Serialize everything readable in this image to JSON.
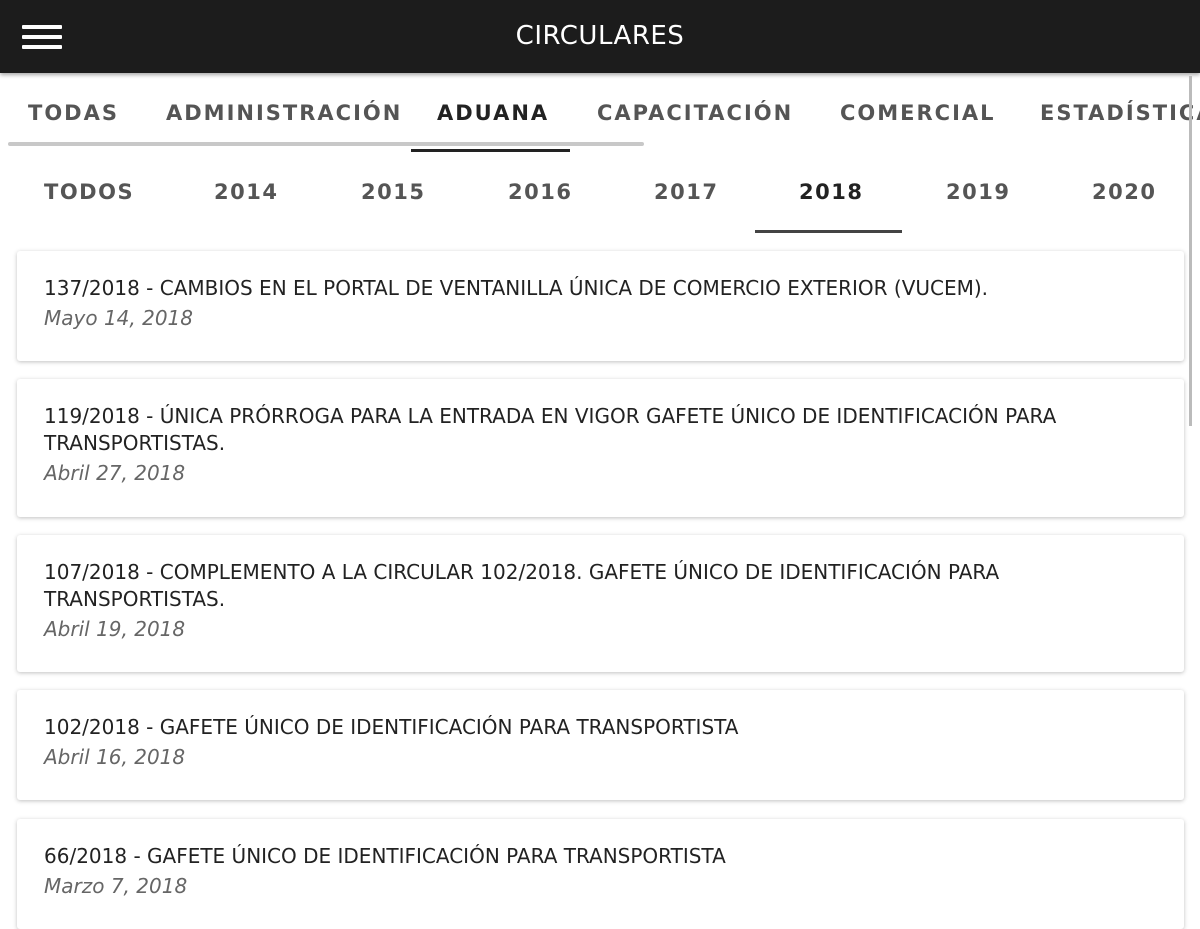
{
  "header": {
    "title": "CIRCULARES",
    "menu_icon": "hamburger-icon"
  },
  "categories": [
    {
      "label": "TODAS",
      "active": false
    },
    {
      "label": "ADMINISTRACIÓN",
      "active": false
    },
    {
      "label": "ADUANA",
      "active": true
    },
    {
      "label": "CAPACITACIÓN",
      "active": false
    },
    {
      "label": "COMERCIAL",
      "active": false
    },
    {
      "label": "ESTADÍSTICA",
      "active": false
    }
  ],
  "years": [
    {
      "label": "TODOS",
      "active": false
    },
    {
      "label": "2014",
      "active": false
    },
    {
      "label": "2015",
      "active": false
    },
    {
      "label": "2016",
      "active": false
    },
    {
      "label": "2017",
      "active": false
    },
    {
      "label": "2018",
      "active": true
    },
    {
      "label": "2019",
      "active": false
    },
    {
      "label": "2020",
      "active": false
    }
  ],
  "circulars": [
    {
      "title": "137/2018 - CAMBIOS EN EL PORTAL DE VENTANILLA ÚNICA DE COMERCIO EXTERIOR (VUCEM).",
      "date": "Mayo 14, 2018"
    },
    {
      "title": "119/2018 - ÚNICA PRÓRROGA PARA LA ENTRADA EN VIGOR GAFETE ÚNICO DE IDENTIFICACIÓN PARA TRANSPORTISTAS.",
      "date": "Abril 27, 2018"
    },
    {
      "title": "107/2018 - COMPLEMENTO A LA CIRCULAR 102/2018. GAFETE ÚNICO DE IDENTIFICACIÓN PARA TRANSPORTISTAS.",
      "date": "Abril 19, 2018"
    },
    {
      "title": "102/2018 - GAFETE ÚNICO DE IDENTIFICACIÓN PARA TRANSPORTISTA",
      "date": "Abril 16, 2018"
    },
    {
      "title": "66/2018 - GAFETE ÚNICO DE IDENTIFICACIÓN PARA TRANSPORTISTA",
      "date": "Marzo 7, 2018"
    }
  ]
}
